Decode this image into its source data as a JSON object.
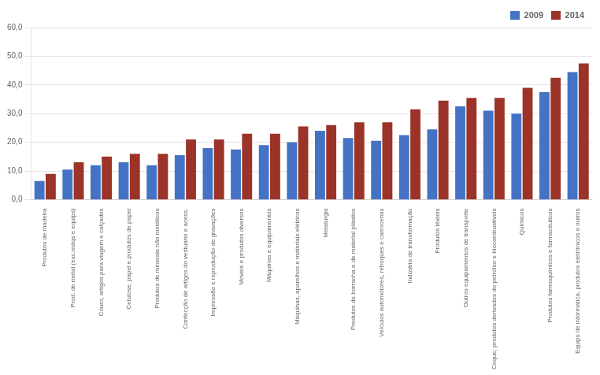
{
  "chart_data": {
    "type": "bar",
    "categories": [
      "Produtos de madeira",
      "Prod. de metal (exc.máqs e equips)",
      "Couro, artigos para viagem e calçados",
      "Celulose, papel e produtos de papel",
      "Produtos de minerais não metálicos",
      "Confecção de artigos do vestuário e acess.",
      "Impressão e reprodução de gravações",
      "Móveis e produtos diversos",
      "Máquinas e equipamentos",
      "Máquinas, aparelhos e materiais elétricos",
      "Metalurgia",
      "Produtos de borracha e de material plástico",
      "Veículos automotores, reboques e carrocerias",
      "Indústria de transformação",
      "Produtos têxteis",
      "Outros equipamentos de transporte",
      "Coque, produtos derivados do petróleo e biocombustíveis",
      "Químicos",
      "Produtos farmoquímicos e farmacêuticos",
      "Equips de informática, produtos eletrônicos e outros"
    ],
    "series": [
      {
        "name": "2009",
        "color": "#4472C4",
        "values": [
          6.5,
          10.5,
          12.0,
          13.0,
          12.0,
          15.5,
          18.0,
          17.5,
          19.0,
          20.0,
          24.0,
          21.5,
          20.5,
          22.5,
          24.5,
          32.5,
          31.0,
          30.0,
          37.5,
          44.5
        ]
      },
      {
        "name": "2014",
        "color": "#9B3328",
        "values": [
          9.0,
          13.0,
          15.0,
          16.0,
          16.0,
          21.0,
          21.0,
          23.0,
          23.0,
          25.5,
          26.0,
          27.0,
          27.0,
          31.5,
          34.5,
          35.5,
          35.5,
          39.0,
          42.5,
          47.5
        ]
      }
    ],
    "ylim": [
      0,
      60
    ],
    "yticks": [
      {
        "value": 0,
        "label": "0,0"
      },
      {
        "value": 10,
        "label": "10,0"
      },
      {
        "value": 20,
        "label": "20,0"
      },
      {
        "value": 30,
        "label": "30,0"
      },
      {
        "value": 40,
        "label": "40,0"
      },
      {
        "value": 50,
        "label": "50,0"
      },
      {
        "value": 60,
        "label": "60,0"
      }
    ],
    "grid": true,
    "legend": "upper right"
  }
}
